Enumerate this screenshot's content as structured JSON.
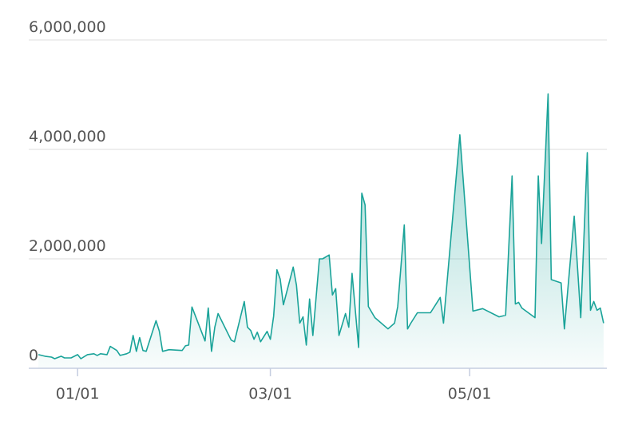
{
  "chart_data": {
    "type": "area",
    "x": [
      "12/20",
      "12/22",
      "12/24",
      "12/25",
      "12/27",
      "12/28",
      "12/30",
      "01/01",
      "01/02",
      "01/04",
      "01/06",
      "01/07",
      "01/08",
      "01/10",
      "01/11",
      "01/13",
      "01/14",
      "01/16",
      "01/17",
      "01/18",
      "01/19",
      "01/20",
      "01/21",
      "01/22",
      "01/25",
      "01/26",
      "01/27",
      "01/29",
      "02/02",
      "02/03",
      "02/04",
      "02/05",
      "02/09",
      "02/10",
      "02/11",
      "02/12",
      "02/13",
      "02/17",
      "02/18",
      "02/21",
      "02/22",
      "02/23",
      "02/24",
      "02/25",
      "02/26",
      "02/28",
      "03/01",
      "03/02",
      "03/03",
      "03/04",
      "03/05",
      "03/08",
      "03/09",
      "03/10",
      "03/11",
      "03/12",
      "03/13",
      "03/14",
      "03/16",
      "03/17",
      "03/19",
      "03/20",
      "03/21",
      "03/22",
      "03/24",
      "03/25",
      "03/26",
      "03/28",
      "03/29",
      "03/30",
      "03/31",
      "04/02",
      "04/06",
      "04/08",
      "04/09",
      "04/11",
      "04/12",
      "04/13",
      "04/15",
      "04/19",
      "04/22",
      "04/23",
      "04/28",
      "05/02",
      "05/05",
      "05/10",
      "05/12",
      "05/14",
      "05/15",
      "05/16",
      "05/17",
      "05/21",
      "05/22",
      "05/23",
      "05/25",
      "05/26",
      "05/29",
      "05/30",
      "06/02",
      "06/04",
      "06/06",
      "06/07",
      "06/08",
      "06/09",
      "06/10",
      "06/11"
    ],
    "values": [
      250000,
      220000,
      205000,
      175000,
      220000,
      190000,
      190000,
      250000,
      175000,
      250000,
      265000,
      235000,
      265000,
      250000,
      400000,
      325000,
      235000,
      265000,
      295000,
      600000,
      310000,
      560000,
      325000,
      310000,
      870000,
      680000,
      310000,
      340000,
      325000,
      410000,
      425000,
      1120000,
      500000,
      1100000,
      310000,
      750000,
      1000000,
      515000,
      485000,
      1220000,
      750000,
      690000,
      530000,
      660000,
      485000,
      675000,
      530000,
      955000,
      1800000,
      1630000,
      1160000,
      1850000,
      1515000,
      825000,
      940000,
      425000,
      1265000,
      600000,
      2000000,
      2000000,
      2070000,
      1340000,
      1455000,
      600000,
      1000000,
      750000,
      1735000,
      380000,
      3200000,
      2985000,
      1130000,
      925000,
      720000,
      825000,
      1130000,
      2620000,
      720000,
      825000,
      1015000,
      1015000,
      1295000,
      825000,
      4265000,
      1045000,
      1090000,
      940000,
      970000,
      3515000,
      1175000,
      1205000,
      1100000,
      925000,
      3515000,
      2280000,
      5015000,
      1620000,
      1560000,
      720000,
      2780000,
      925000,
      3940000,
      1060000,
      1220000,
      1060000,
      1100000,
      825000
    ],
    "color": "#1aa399",
    "xlim": [
      "12/19",
      "06/12"
    ],
    "xticks": [
      "01/01",
      "03/01",
      "05/01"
    ],
    "ylim": [
      0,
      6000000
    ],
    "yticks": [
      0,
      {
        "value": 2000000,
        "label": "2,000,000"
      },
      {
        "value": 4000000,
        "label": "4,000,000"
      },
      {
        "value": 6000000,
        "label": "6,000,000"
      }
    ],
    "grid": true
  }
}
